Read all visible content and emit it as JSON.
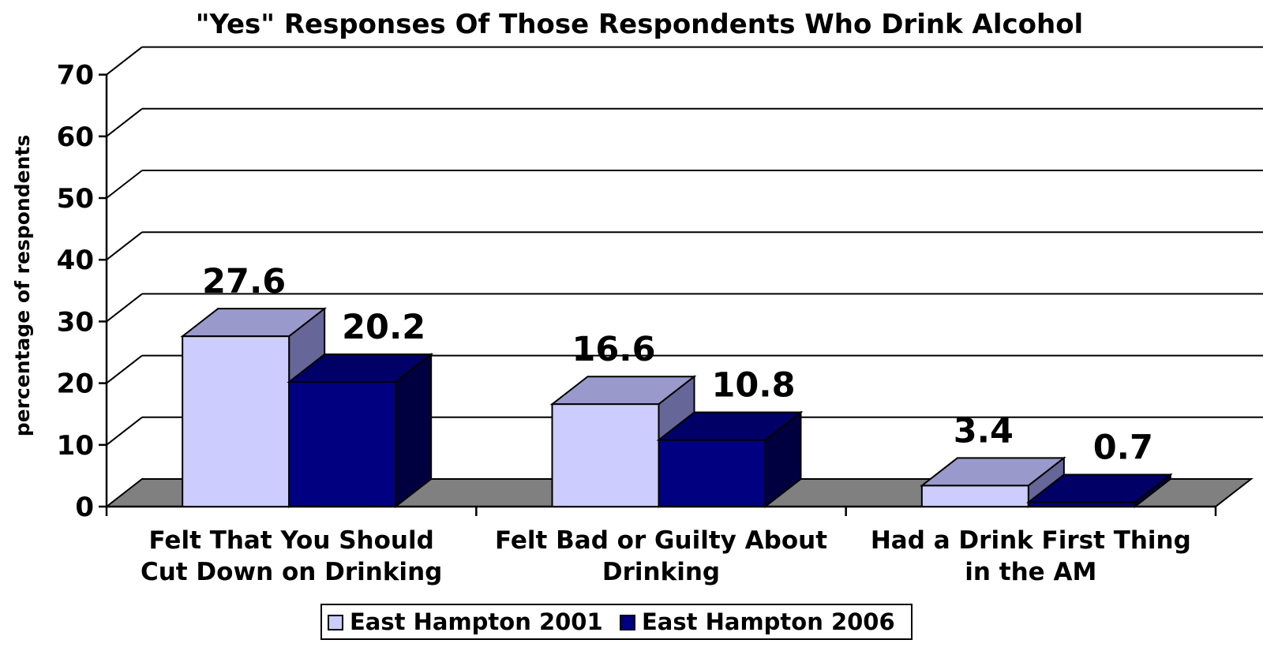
{
  "chart_data": {
    "type": "bar",
    "title": "\"Yes\" Responses Of Those Respondents Who Drink Alcohol",
    "ylabel": "percentage of respondents",
    "xlabel": "",
    "ylim": [
      0,
      70
    ],
    "yticks": [
      0,
      10,
      20,
      30,
      40,
      50,
      60,
      70
    ],
    "grid": true,
    "three_d": true,
    "legend_position": "bottom",
    "categories": [
      [
        "Felt That You Should",
        "Cut Down on Drinking"
      ],
      [
        "Felt Bad or Guilty About",
        "Drinking"
      ],
      [
        "Had a Drink First Thing",
        "in the AM"
      ]
    ],
    "series": [
      {
        "name": "East Hampton 2001",
        "values": [
          27.6,
          16.6,
          3.4
        ],
        "labels": [
          "27.6",
          "16.6",
          "3.4"
        ],
        "color": "#ccccff",
        "top_color": "#9999cc",
        "side_color": "#666699"
      },
      {
        "name": "East Hampton 2006",
        "values": [
          20.2,
          10.8,
          0.7
        ],
        "labels": [
          "20.2",
          "10.8",
          "0.7"
        ],
        "color": "#000080",
        "top_color": "#000066",
        "side_color": "#000040"
      }
    ],
    "floor_color": "#808080"
  }
}
